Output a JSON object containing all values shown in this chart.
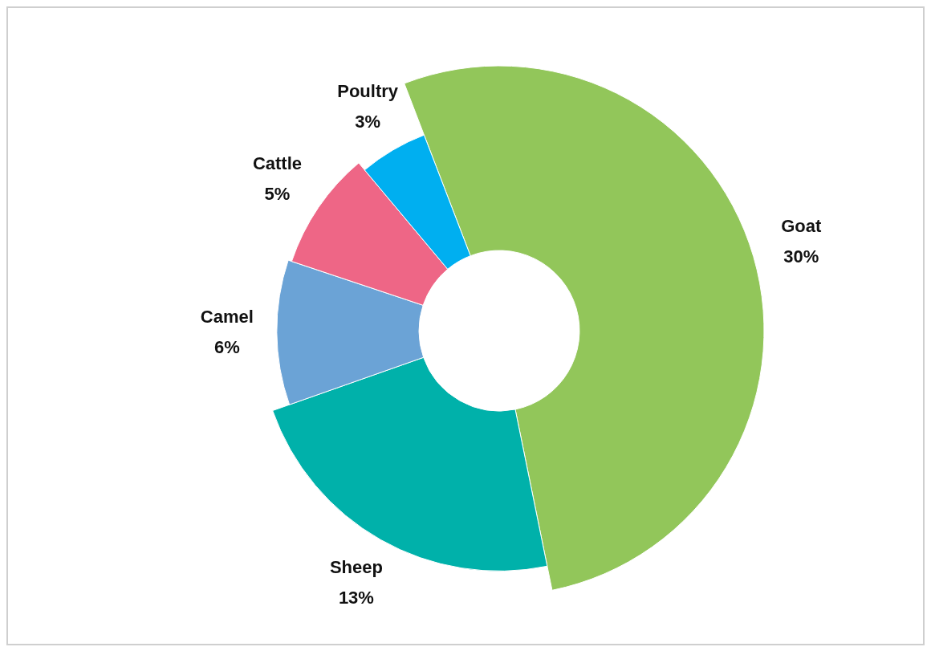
{
  "chart_data": {
    "type": "donut",
    "categories": [
      "Goat",
      "Sheep",
      "Camel",
      "Cattle",
      "Poultry"
    ],
    "values": [
      30,
      13,
      6,
      5,
      3
    ],
    "value_labels": [
      "30%",
      "13%",
      "6%",
      "5%",
      "3%"
    ],
    "colors": [
      "#92c65a",
      "#00b1aa",
      "#6ba3d6",
      "#ee6686",
      "#00aff0"
    ],
    "legend": false
  }
}
